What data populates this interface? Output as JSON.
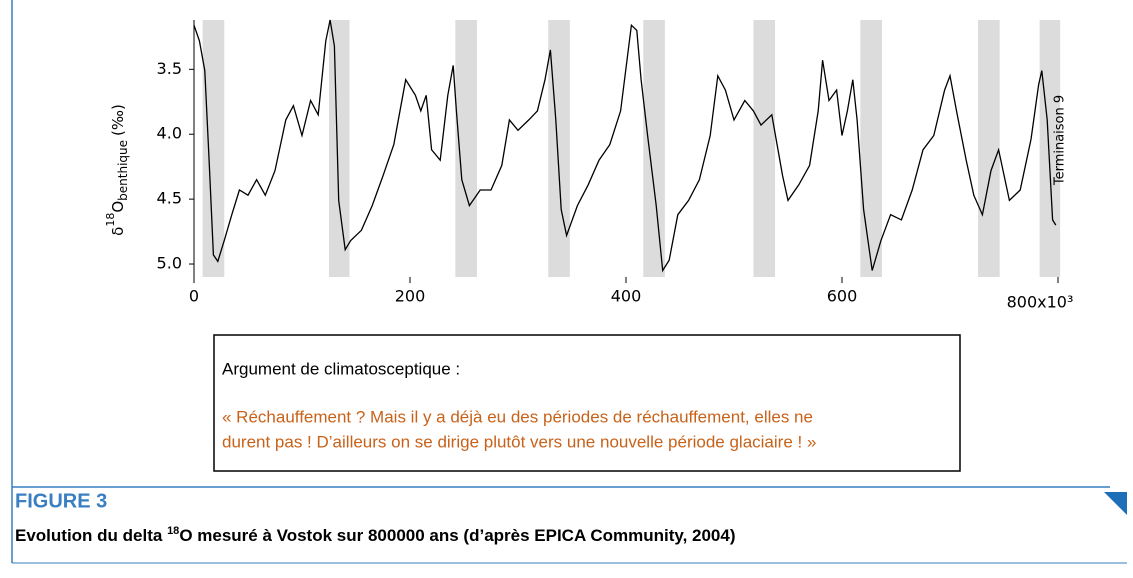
{
  "chart_data": {
    "type": "line",
    "y_label": {
      "prefix": "δ",
      "sup": "18",
      "base": "O",
      "sub": "benthique",
      "unit": "(‰)"
    },
    "annotation": "Terminaison 9",
    "x": [
      0,
      5,
      10,
      14,
      18,
      22,
      28,
      35,
      42,
      50,
      58,
      66,
      75,
      85,
      92,
      100,
      108,
      115,
      122,
      126,
      130,
      134,
      140,
      145,
      155,
      165,
      175,
      185,
      196,
      205,
      210,
      215,
      220,
      228,
      235,
      240,
      243,
      248,
      255,
      265,
      275,
      285,
      292,
      300,
      310,
      318,
      325,
      330,
      335,
      340,
      345,
      355,
      365,
      375,
      385,
      395,
      405,
      410,
      414,
      420,
      428,
      434,
      440,
      448,
      458,
      468,
      478,
      485,
      492,
      500,
      510,
      518,
      525,
      535,
      545,
      550,
      560,
      570,
      578,
      582,
      588,
      595,
      600,
      605,
      610,
      614,
      620,
      628,
      636,
      645,
      655,
      665,
      675,
      685,
      695,
      700,
      706,
      715,
      722,
      730,
      738,
      745,
      755,
      765,
      775,
      782,
      785,
      790,
      795,
      798
    ],
    "values": [
      3.16,
      3.28,
      3.51,
      4.2,
      4.93,
      4.98,
      4.82,
      4.62,
      4.43,
      4.47,
      4.35,
      4.47,
      4.28,
      3.89,
      3.78,
      4.01,
      3.74,
      3.85,
      3.28,
      3.12,
      3.32,
      4.51,
      4.89,
      4.82,
      4.74,
      4.55,
      4.32,
      4.08,
      3.58,
      3.7,
      3.82,
      3.7,
      4.12,
      4.2,
      3.7,
      3.47,
      3.82,
      4.35,
      4.55,
      4.43,
      4.43,
      4.24,
      3.89,
      3.97,
      3.89,
      3.82,
      3.58,
      3.35,
      3.89,
      4.58,
      4.78,
      4.55,
      4.39,
      4.2,
      4.08,
      3.82,
      3.16,
      3.2,
      3.58,
      4.01,
      4.55,
      5.05,
      4.97,
      4.62,
      4.51,
      4.35,
      4.01,
      3.55,
      3.66,
      3.89,
      3.74,
      3.82,
      3.93,
      3.85,
      4.32,
      4.51,
      4.39,
      4.24,
      3.82,
      3.43,
      3.74,
      3.66,
      4.01,
      3.82,
      3.58,
      3.89,
      4.58,
      5.05,
      4.82,
      4.62,
      4.66,
      4.43,
      4.12,
      4.01,
      3.66,
      3.55,
      3.82,
      4.2,
      4.47,
      4.62,
      4.28,
      4.12,
      4.51,
      4.43,
      4.04,
      3.62,
      3.51,
      3.89,
      4.66,
      4.7
    ],
    "color": "#000000",
    "shaded_bands": [
      [
        8,
        28
      ],
      [
        125,
        144
      ],
      [
        242,
        262
      ],
      [
        328,
        348
      ],
      [
        416,
        436
      ],
      [
        518,
        538
      ],
      [
        617,
        637
      ],
      [
        726,
        746
      ],
      [
        783,
        802
      ]
    ],
    "band_color": "#dcdcdc",
    "xlim": [
      0,
      800
    ],
    "ylim": [
      3.12,
      5.1
    ],
    "y_inverted": true,
    "xticks": [
      0,
      200,
      400,
      600,
      {
        "value": 800,
        "label": "800x10³"
      }
    ],
    "yticks": [
      {
        "value": 3.5,
        "label": "3.5"
      },
      {
        "value": 4.0,
        "label": "4.0"
      },
      {
        "value": 4.5,
        "label": "4.5"
      },
      {
        "value": 5.0,
        "label": "5.0"
      }
    ]
  },
  "box": {
    "heading": "Argument de climatosceptique :",
    "quote_lines": [
      "« Réchauffement ? Mais il y a déjà eu des périodes de réchauffement, elles ne",
      "durent pas ! D’ailleurs on se dirige plutôt vers une nouvelle période glaciaire ! »"
    ]
  },
  "figure": {
    "label": "FIGURE 3",
    "caption_before": "Evolution du delta ",
    "caption_sup": "18",
    "caption_after": "O mesuré à Vostok sur 800000 ans (d’après EPICA Community, 2004)"
  }
}
